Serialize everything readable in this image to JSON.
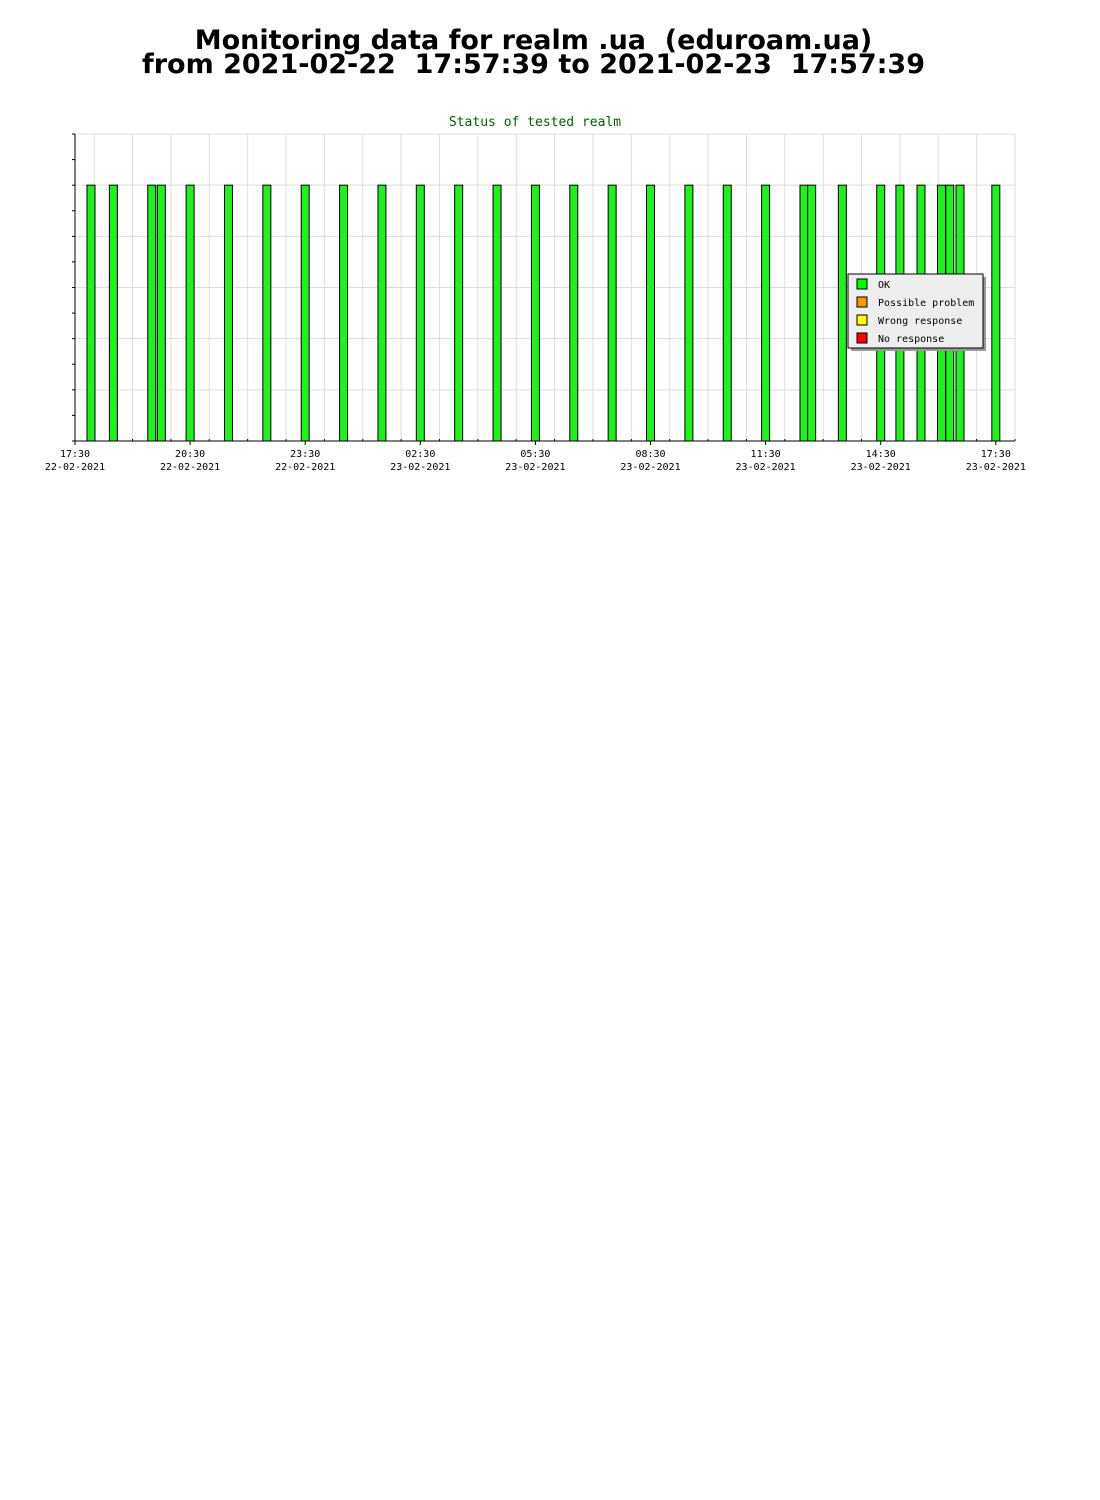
{
  "page": {
    "title_line1": "Monitoring data for realm .ua  (eduroam.ua)",
    "title_line2": "from 2021-02-22  17:57:39 to 2021-02-23  17:57:39"
  },
  "chart_data": {
    "type": "bar",
    "title": "Status of tested realm",
    "xlabel": "",
    "ylabel": "",
    "x_axis": {
      "type": "time",
      "start": "2021-02-22 17:30",
      "end": "2021-02-23 18:00",
      "tick_labels": [
        {
          "time": "17:30",
          "date": "22-02-2021"
        },
        {
          "time": "20:30",
          "date": "22-02-2021"
        },
        {
          "time": "23:30",
          "date": "22-02-2021"
        },
        {
          "time": "02:30",
          "date": "23-02-2021"
        },
        {
          "time": "05:30",
          "date": "23-02-2021"
        },
        {
          "time": "08:30",
          "date": "23-02-2021"
        },
        {
          "time": "11:30",
          "date": "23-02-2021"
        },
        {
          "time": "14:30",
          "date": "23-02-2021"
        },
        {
          "time": "17:30",
          "date": "23-02-2021"
        }
      ]
    },
    "ylim": [
      0,
      6
    ],
    "grid": true,
    "legend_position": "right",
    "legend": [
      {
        "label": "OK",
        "color": "#00ff00"
      },
      {
        "label": "Possible problem",
        "color": "#ff9900"
      },
      {
        "label": "Wrong response",
        "color": "#ffff00"
      },
      {
        "label": "No response",
        "color": "#ff0000"
      }
    ],
    "series": [
      {
        "name": "OK",
        "color": "#22ee22",
        "status_level": 5,
        "times": [
          "2021-02-22 17:55",
          "2021-02-22 18:30",
          "2021-02-22 19:30",
          "2021-02-22 19:45",
          "2021-02-22 20:30",
          "2021-02-22 21:30",
          "2021-02-22 22:30",
          "2021-02-22 23:30",
          "2021-02-23 00:30",
          "2021-02-23 01:30",
          "2021-02-23 02:30",
          "2021-02-23 03:30",
          "2021-02-23 04:30",
          "2021-02-23 05:30",
          "2021-02-23 06:30",
          "2021-02-23 07:30",
          "2021-02-23 08:30",
          "2021-02-23 09:30",
          "2021-02-23 10:30",
          "2021-02-23 11:30",
          "2021-02-23 12:30",
          "2021-02-23 12:42",
          "2021-02-23 13:30",
          "2021-02-23 14:30",
          "2021-02-23 15:00",
          "2021-02-23 15:33",
          "2021-02-23 16:05",
          "2021-02-23 16:18",
          "2021-02-23 16:34",
          "2021-02-23 17:30"
        ]
      }
    ]
  }
}
